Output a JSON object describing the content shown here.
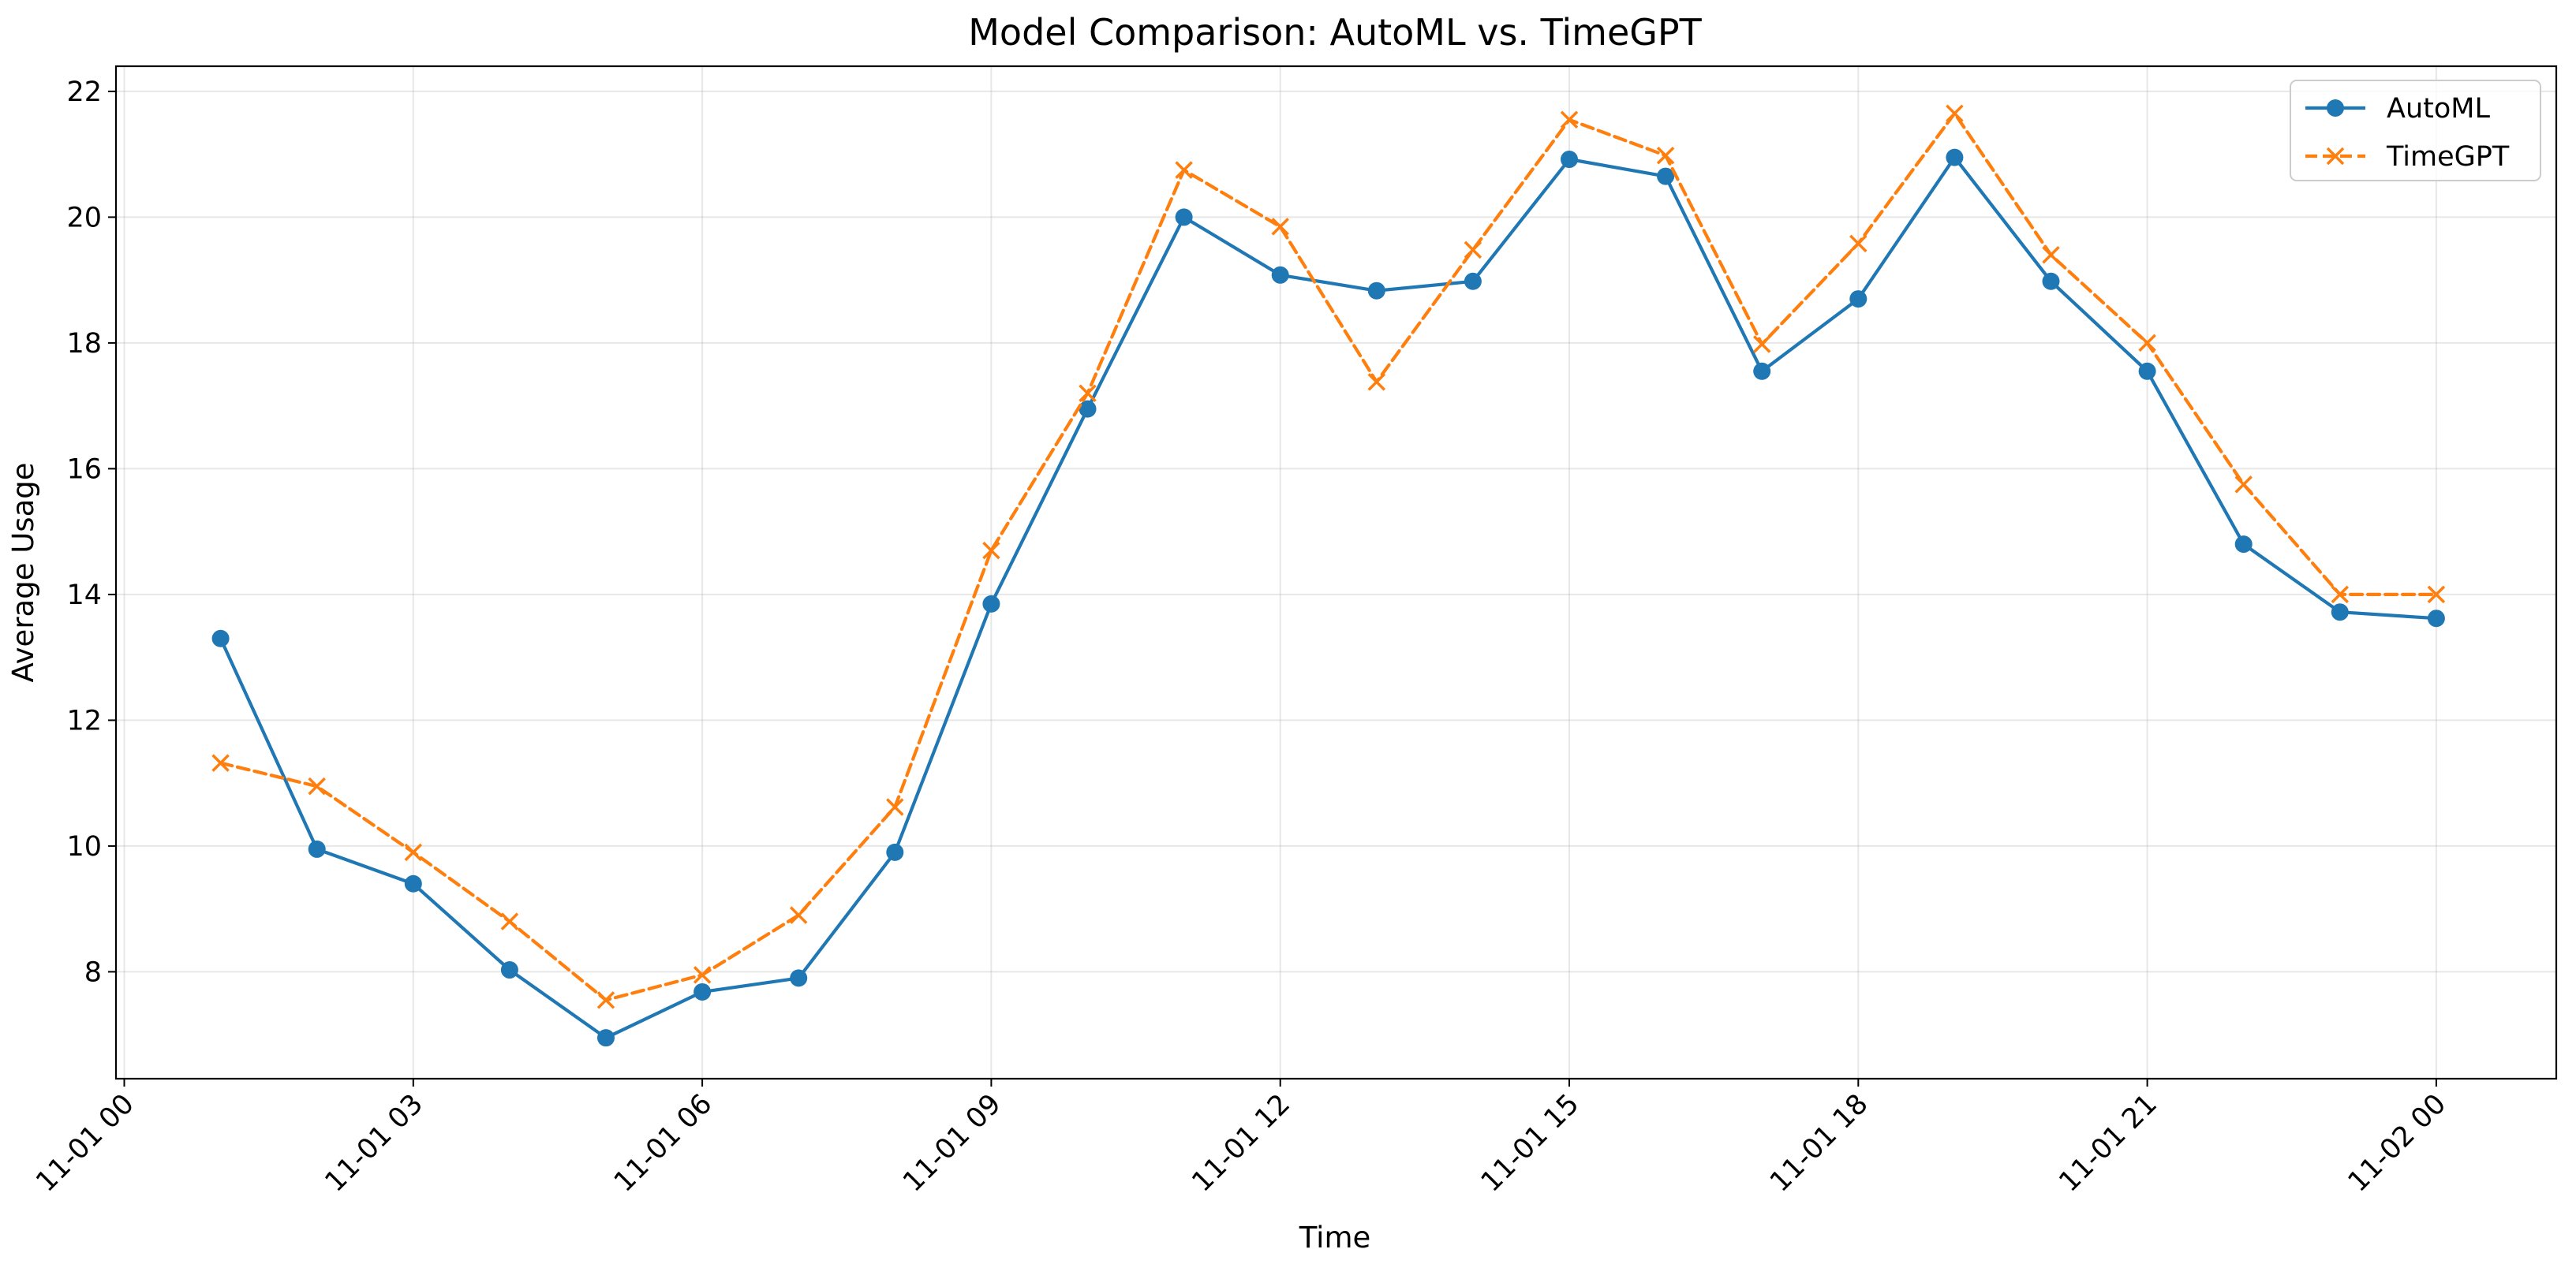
{
  "chart_data": {
    "type": "line",
    "title": "Model Comparison: AutoML vs. TimeGPT",
    "xlabel": "Time",
    "ylabel": "Average Usage",
    "xlim": [
      "2023-11-01 00:00",
      "2023-11-02 00:00"
    ],
    "ylim": [
      6.3,
      22.4
    ],
    "grid": true,
    "legend_position": "top-right",
    "x_tick_labels": [
      "11-01 00",
      "11-01 03",
      "11-01 06",
      "11-01 09",
      "11-01 12",
      "11-01 15",
      "11-01 18",
      "11-01 21",
      "11-02 00"
    ],
    "y_ticks": [
      8,
      10,
      12,
      14,
      16,
      18,
      20,
      22
    ],
    "x": [
      "11-01 01",
      "11-01 02",
      "11-01 03",
      "11-01 04",
      "11-01 05",
      "11-01 06",
      "11-01 07",
      "11-01 08",
      "11-01 09",
      "11-01 10",
      "11-01 11",
      "11-01 12",
      "11-01 13",
      "11-01 14",
      "11-01 15",
      "11-01 16",
      "11-01 17",
      "11-01 18",
      "11-01 19",
      "11-01 20",
      "11-01 21",
      "11-01 22",
      "11-01 23",
      "11-02 00"
    ],
    "series": [
      {
        "name": "AutoML",
        "color": "#1f77b4",
        "marker": "circle",
        "line_style": "solid",
        "values": [
          13.3,
          9.95,
          9.4,
          8.03,
          6.95,
          7.68,
          7.9,
          9.9,
          13.85,
          16.95,
          20.0,
          19.08,
          18.83,
          18.98,
          20.92,
          20.65,
          17.55,
          18.7,
          20.95,
          18.98,
          17.55,
          14.8,
          13.72,
          13.62
        ]
      },
      {
        "name": "TimeGPT",
        "color": "#ff7f0e",
        "marker": "x",
        "line_style": "dashed",
        "values": [
          11.32,
          10.95,
          9.9,
          8.8,
          7.55,
          7.95,
          8.9,
          10.62,
          14.7,
          17.2,
          20.75,
          19.85,
          17.38,
          19.48,
          21.55,
          20.98,
          17.98,
          19.58,
          21.65,
          19.4,
          18.0,
          15.75,
          14.0,
          14.0
        ]
      }
    ]
  }
}
